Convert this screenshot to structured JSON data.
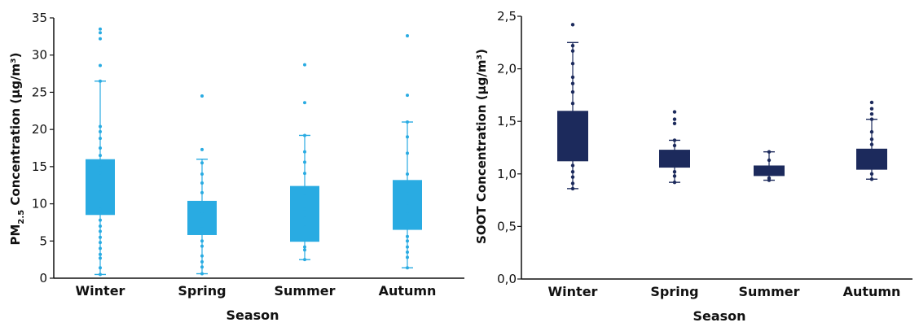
{
  "chart_data": [
    {
      "type": "box",
      "xlabel": "Season",
      "ylabel_main": "PM",
      "ylabel_sub": "2.5",
      "ylabel_rest": " Concentration (µg/m³)",
      "ylim": [
        0,
        35
      ],
      "yticks": [
        "0",
        "5",
        "10",
        "15",
        "20",
        "25",
        "30",
        "35"
      ],
      "ytick_values": [
        0,
        5,
        10,
        15,
        20,
        25,
        30,
        35
      ],
      "categories": [
        "Winter",
        "Spring",
        "Summer",
        "Autumn"
      ],
      "color": "#29abe2",
      "boxes": [
        {
          "whisker_low": 0.5,
          "q1": 8.5,
          "q3": 16.0,
          "whisker_high": 26.5,
          "points": [
            33.5,
            33.0,
            32.2,
            28.6,
            26.5,
            20.4,
            19.7,
            18.8,
            17.5,
            16.5,
            15.3,
            14.2,
            12.8,
            11.5,
            10.2,
            9.2,
            7.8,
            7.0,
            6.3,
            5.5,
            4.8,
            4.0,
            3.2,
            2.7,
            1.4,
            0.5
          ]
        },
        {
          "whisker_low": 0.6,
          "q1": 5.8,
          "q3": 10.4,
          "whisker_high": 16.0,
          "points": [
            24.5,
            17.3,
            15.5,
            14.0,
            12.8,
            11.5,
            9.6,
            8.8,
            7.0,
            5.0,
            4.3,
            3.0,
            2.2,
            1.5,
            0.6
          ]
        },
        {
          "whisker_low": 2.5,
          "q1": 4.9,
          "q3": 12.4,
          "whisker_high": 19.2,
          "points": [
            28.7,
            23.6,
            19.2,
            17.0,
            15.6,
            14.1,
            11.0,
            9.3,
            8.0,
            6.8,
            4.2,
            3.8,
            2.5
          ]
        },
        {
          "whisker_low": 1.4,
          "q1": 6.5,
          "q3": 13.2,
          "whisker_high": 21.0,
          "points": [
            32.6,
            24.6,
            21.0,
            19.0,
            16.8,
            14.0,
            11.7,
            10.1,
            8.8,
            7.5,
            5.6,
            5.0,
            4.2,
            3.5,
            2.8,
            1.4
          ]
        }
      ]
    },
    {
      "type": "box",
      "xlabel": "Season",
      "ylabel_main": "SOOT Concentration (µg/m³)",
      "ylim": [
        0,
        2.5
      ],
      "yticks": [
        "0,0",
        "0,5",
        "1,0",
        "1,5",
        "2,0",
        "2,5"
      ],
      "ytick_values": [
        0,
        0.5,
        1.0,
        1.5,
        2.0,
        2.5
      ],
      "categories": [
        "Winter",
        "Spring",
        "Summer",
        "Autumn"
      ],
      "color": "#1c2a5c",
      "boxes": [
        {
          "whisker_low": 0.86,
          "q1": 1.12,
          "q3": 1.6,
          "whisker_high": 2.25,
          "points": [
            2.42,
            2.22,
            2.17,
            2.05,
            1.92,
            1.86,
            1.78,
            1.67,
            1.08,
            1.02,
            0.97,
            0.91,
            0.86
          ]
        },
        {
          "whisker_low": 0.92,
          "q1": 1.06,
          "q3": 1.23,
          "whisker_high": 1.32,
          "points": [
            1.59,
            1.52,
            1.48,
            1.32,
            1.27,
            1.02,
            0.98,
            0.92
          ]
        },
        {
          "whisker_low": 0.94,
          "q1": 0.98,
          "q3": 1.08,
          "whisker_high": 1.21,
          "points": [
            1.21,
            1.13,
            0.96,
            0.94
          ]
        },
        {
          "whisker_low": 0.95,
          "q1": 1.04,
          "q3": 1.24,
          "whisker_high": 1.52,
          "points": [
            1.68,
            1.62,
            1.57,
            1.52,
            1.4,
            1.33,
            1.28,
            1.0,
            0.95
          ]
        }
      ]
    }
  ]
}
